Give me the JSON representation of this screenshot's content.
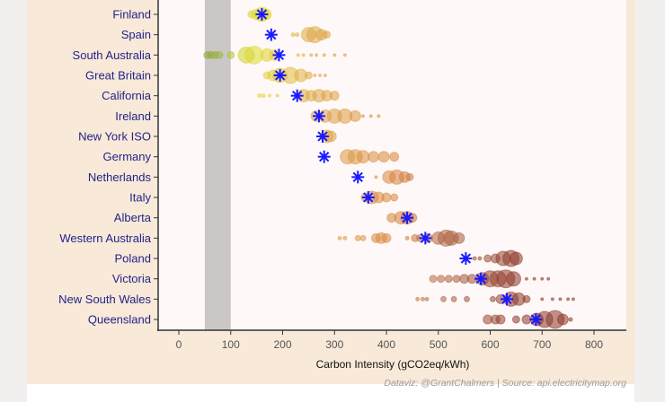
{
  "chart_data": {
    "type": "scatter",
    "xlabel": "Carbon Intensity (gCO2eq/kWh)",
    "ylabel": "",
    "xlim": [
      -40,
      860
    ],
    "xticks": [
      0,
      100,
      200,
      300,
      400,
      500,
      600,
      700,
      800
    ],
    "grid": false,
    "shaded_band": [
      50,
      100
    ],
    "caption": "Dataviz: @GrantChalmers | Source: api.electricitymap.org",
    "colors": {
      "mean_marker": "#1a1aff",
      "band": "#cbc7c7",
      "plot_bg": "#fef9f8",
      "label_text": "#23238a"
    },
    "categories": [
      "Finland",
      "Spain",
      "South Australia",
      "Great Britain",
      "California",
      "Ireland",
      "New York ISO",
      "Germany",
      "Netherlands",
      "Italy",
      "Alberta",
      "Western Australia",
      "Poland",
      "Victoria",
      "New South Wales",
      "Queensland"
    ],
    "means": [
      160,
      178,
      193,
      195,
      228,
      270,
      277,
      280,
      345,
      365,
      440,
      475,
      553,
      582,
      632,
      688
    ],
    "observations": [
      [
        [
          140,
          4
        ],
        [
          150,
          6
        ],
        [
          160,
          8
        ],
        [
          168,
          6
        ]
      ],
      [
        [
          220,
          2
        ],
        [
          228,
          2
        ],
        [
          250,
          8
        ],
        [
          262,
          9
        ],
        [
          275,
          6
        ],
        [
          285,
          4
        ]
      ],
      [
        [
          55,
          4
        ],
        [
          62,
          4
        ],
        [
          70,
          4
        ],
        [
          78,
          4
        ],
        [
          100,
          4
        ],
        [
          130,
          9
        ],
        [
          145,
          10
        ],
        [
          170,
          7
        ],
        [
          185,
          6
        ],
        [
          230,
          1.5
        ],
        [
          240,
          1.5
        ],
        [
          255,
          1.5
        ],
        [
          265,
          1.5
        ],
        [
          280,
          1.5
        ],
        [
          300,
          1.5
        ],
        [
          320,
          1.5
        ]
      ],
      [
        [
          170,
          4
        ],
        [
          182,
          6
        ],
        [
          195,
          8
        ],
        [
          215,
          9
        ],
        [
          235,
          7
        ],
        [
          250,
          4
        ],
        [
          262,
          1.5
        ],
        [
          272,
          1.5
        ],
        [
          282,
          1.5
        ]
      ],
      [
        [
          155,
          2
        ],
        [
          163,
          2
        ],
        [
          175,
          1.5
        ],
        [
          190,
          1.5
        ],
        [
          240,
          7
        ],
        [
          255,
          6
        ],
        [
          270,
          7
        ],
        [
          285,
          6
        ],
        [
          300,
          5
        ]
      ],
      [
        [
          265,
          6
        ],
        [
          282,
          7
        ],
        [
          300,
          8
        ],
        [
          320,
          8
        ],
        [
          340,
          6
        ],
        [
          355,
          1.5
        ],
        [
          370,
          1.5
        ],
        [
          385,
          1.5
        ]
      ],
      [
        [
          285,
          7
        ],
        [
          293,
          6
        ]
      ],
      [
        [
          325,
          8
        ],
        [
          340,
          8
        ],
        [
          355,
          7
        ],
        [
          375,
          6
        ],
        [
          395,
          6
        ],
        [
          415,
          5
        ]
      ],
      [
        [
          380,
          1.5
        ],
        [
          405,
          7
        ],
        [
          420,
          8
        ],
        [
          435,
          6
        ],
        [
          445,
          4
        ]
      ],
      [
        [
          360,
          5
        ],
        [
          372,
          7
        ],
        [
          385,
          6
        ],
        [
          400,
          5
        ],
        [
          415,
          4
        ]
      ],
      [
        [
          410,
          5
        ],
        [
          428,
          7
        ],
        [
          440,
          7
        ],
        [
          450,
          5
        ]
      ],
      [
        [
          310,
          2
        ],
        [
          320,
          2
        ],
        [
          345,
          3
        ],
        [
          355,
          3
        ],
        [
          380,
          5
        ],
        [
          390,
          6
        ],
        [
          400,
          5
        ],
        [
          440,
          2
        ],
        [
          455,
          4
        ],
        [
          465,
          4
        ],
        [
          480,
          5
        ],
        [
          500,
          7
        ],
        [
          515,
          9
        ],
        [
          525,
          8
        ],
        [
          540,
          6
        ]
      ],
      [
        [
          570,
          2
        ],
        [
          580,
          2
        ],
        [
          595,
          4
        ],
        [
          610,
          5
        ],
        [
          625,
          8
        ],
        [
          640,
          9
        ],
        [
          650,
          7
        ]
      ],
      [
        [
          490,
          4
        ],
        [
          505,
          4
        ],
        [
          520,
          4
        ],
        [
          535,
          4
        ],
        [
          550,
          5
        ],
        [
          565,
          5
        ],
        [
          585,
          7
        ],
        [
          600,
          9
        ],
        [
          615,
          9
        ],
        [
          630,
          10
        ],
        [
          645,
          8
        ],
        [
          670,
          1.5
        ],
        [
          685,
          1.5
        ],
        [
          700,
          1.5
        ],
        [
          712,
          1.5
        ]
      ],
      [
        [
          460,
          2
        ],
        [
          470,
          2
        ],
        [
          478,
          2
        ],
        [
          510,
          3
        ],
        [
          530,
          3
        ],
        [
          555,
          3
        ],
        [
          605,
          3
        ],
        [
          620,
          5
        ],
        [
          640,
          8
        ],
        [
          655,
          7
        ],
        [
          670,
          4
        ],
        [
          700,
          1.5
        ],
        [
          720,
          1.5
        ],
        [
          735,
          1.5
        ],
        [
          750,
          1.5
        ],
        [
          760,
          1.5
        ]
      ],
      [
        [
          595,
          5
        ],
        [
          610,
          5
        ],
        [
          620,
          5
        ],
        [
          650,
          4
        ],
        [
          670,
          5
        ],
        [
          690,
          7
        ],
        [
          705,
          9
        ],
        [
          725,
          10
        ],
        [
          740,
          6
        ],
        [
          755,
          2
        ]
      ]
    ]
  }
}
